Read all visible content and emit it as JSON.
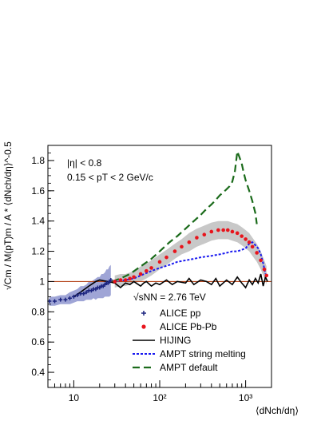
{
  "chart_data": {
    "type": "scatter",
    "x_scale": "log",
    "xlim": [
      5,
      2000
    ],
    "ylim": [
      0.3,
      1.9
    ],
    "xlabel": "⟨dNch/dη⟩",
    "ylabel": "√Cm / M(pT)m / A * ⟨dNch/dη⟩^-0.5",
    "x_ticks": [
      "10",
      "10²",
      "10³"
    ],
    "y_ticks": [
      "0.4",
      "0.6",
      "0.8",
      "1",
      "1.2",
      "1.4",
      "1.6",
      "1.8"
    ],
    "reference_line_y": 1.0,
    "annotations": [
      "|η| < 0.8",
      "0.15 < pT < 2 GeV/c",
      "√sNN = 2.76 TeV"
    ],
    "legend": {
      "position": "lower-right",
      "entries": [
        "ALICE pp",
        "ALICE Pb-Pb",
        "HIJING",
        "AMPT string melting",
        "AMPT default"
      ]
    },
    "colors": {
      "alice_pp": "#1a237e",
      "alice_pp_band": "#9fa5d6",
      "alice_pbpb": "#e8141c",
      "alice_pbpb_band": "#c8c8c8",
      "hijing": "#000000",
      "ampt_sm": "#1a1af0",
      "ampt_default": "#1b6b1b",
      "ref_line": "#b5451b"
    },
    "series": [
      {
        "name": "ALICE pp",
        "style": "markers",
        "x": [
          5.2,
          6,
          7,
          8,
          9,
          10,
          11,
          12,
          13,
          14,
          15,
          16,
          17,
          18,
          19,
          20,
          21,
          22,
          23,
          24,
          25,
          26,
          27
        ],
        "y": [
          0.87,
          0.87,
          0.88,
          0.88,
          0.89,
          0.9,
          0.91,
          0.92,
          0.92,
          0.93,
          0.94,
          0.94,
          0.95,
          0.95,
          0.96,
          0.96,
          0.97,
          0.97,
          0.98,
          0.99,
          0.99,
          1.0,
          1.01
        ],
        "band_halfwidth": [
          0.03,
          0.03,
          0.03,
          0.03,
          0.04,
          0.04,
          0.04,
          0.05,
          0.05,
          0.05,
          0.06,
          0.06,
          0.06,
          0.07,
          0.07,
          0.07,
          0.08,
          0.08,
          0.08,
          0.09,
          0.09,
          0.1,
          0.1
        ]
      },
      {
        "name": "ALICE Pb-Pb",
        "style": "markers",
        "x": [
          30,
          35,
          40,
          45,
          50,
          60,
          70,
          80,
          100,
          120,
          150,
          180,
          220,
          270,
          330,
          400,
          480,
          550,
          620,
          700,
          800,
          900,
          1000,
          1100,
          1200,
          1350,
          1500,
          1650,
          1750
        ],
        "y": [
          1.0,
          1.01,
          1.01,
          1.02,
          1.03,
          1.05,
          1.07,
          1.09,
          1.13,
          1.16,
          1.2,
          1.23,
          1.26,
          1.29,
          1.31,
          1.33,
          1.34,
          1.34,
          1.34,
          1.33,
          1.32,
          1.3,
          1.28,
          1.26,
          1.23,
          1.19,
          1.14,
          1.08,
          1.04
        ],
        "band_halfwidth": [
          0.04,
          0.04,
          0.04,
          0.04,
          0.04,
          0.05,
          0.05,
          0.05,
          0.05,
          0.05,
          0.05,
          0.05,
          0.06,
          0.06,
          0.06,
          0.06,
          0.06,
          0.06,
          0.06,
          0.06,
          0.06,
          0.06,
          0.06,
          0.06,
          0.06,
          0.06,
          0.06,
          0.06,
          0.06
        ]
      },
      {
        "name": "HIJING",
        "style": "solid",
        "x": [
          10,
          12,
          15,
          18,
          20,
          25,
          30,
          35,
          40,
          45,
          50,
          60,
          65,
          70,
          80,
          90,
          100,
          120,
          140,
          160,
          200,
          220,
          250,
          300,
          350,
          400,
          450,
          500,
          600,
          700,
          800,
          900,
          1000,
          1100,
          1200,
          1300,
          1400,
          1500,
          1600,
          1700,
          1800
        ],
        "y": [
          0.9,
          0.93,
          0.97,
          1.0,
          1.01,
          1.0,
          0.99,
          0.96,
          0.99,
          0.98,
          1.0,
          0.97,
          0.99,
          1.0,
          0.97,
          0.99,
          0.98,
          1.01,
          0.98,
          1.0,
          0.99,
          1.02,
          0.98,
          1.01,
          1.0,
          0.98,
          1.02,
          0.97,
          1.01,
          0.98,
          1.03,
          0.99,
          0.96,
          1.01,
          0.98,
          1.02,
          0.99,
          1.05,
          0.97,
          1.03,
          1.0
        ]
      },
      {
        "name": "AMPT string melting",
        "style": "dotted",
        "x": [
          30,
          40,
          50,
          60,
          80,
          100,
          130,
          160,
          200,
          250,
          300,
          400,
          500,
          600,
          700,
          800,
          900,
          1000,
          1100,
          1200,
          1300,
          1400,
          1500,
          1600,
          1700
        ],
        "y": [
          1.0,
          1.01,
          1.02,
          1.04,
          1.07,
          1.09,
          1.11,
          1.13,
          1.14,
          1.15,
          1.16,
          1.17,
          1.18,
          1.19,
          1.2,
          1.2,
          1.21,
          1.22,
          1.25,
          1.26,
          1.24,
          1.22,
          1.18,
          1.12,
          1.05
        ]
      },
      {
        "name": "AMPT default",
        "style": "dashed",
        "x": [
          28,
          35,
          45,
          60,
          80,
          100,
          130,
          160,
          200,
          250,
          300,
          350,
          400,
          450,
          500,
          550,
          600,
          650,
          700,
          750,
          800,
          850,
          900,
          950,
          1000,
          1100,
          1200,
          1300,
          1350
        ],
        "y": [
          1.0,
          1.02,
          1.05,
          1.1,
          1.15,
          1.2,
          1.26,
          1.3,
          1.35,
          1.4,
          1.44,
          1.48,
          1.51,
          1.54,
          1.57,
          1.59,
          1.61,
          1.63,
          1.66,
          1.73,
          1.86,
          1.82,
          1.78,
          1.72,
          1.67,
          1.6,
          1.53,
          1.45,
          1.38
        ]
      }
    ]
  }
}
